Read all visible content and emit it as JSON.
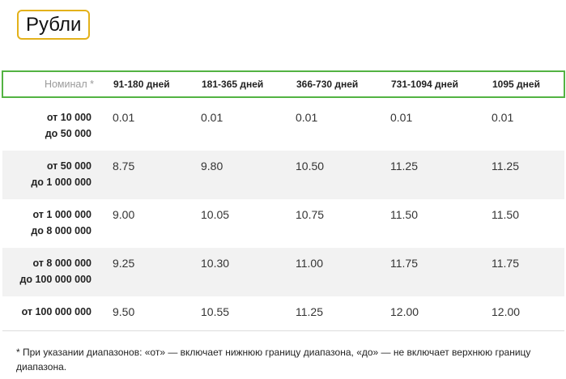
{
  "currency_tab": {
    "label": "Рубли",
    "border_color": "#e3b11a"
  },
  "table": {
    "header_border_color": "#53b342",
    "nominal_header": "Номинал *",
    "columns": [
      "91-180 дней",
      "181-365 дней",
      "366-730 дней",
      "731-1094 дней",
      "1095 дней"
    ],
    "rows": [
      {
        "line1": "от 10 000",
        "line2": "до 50 000",
        "rates": [
          "0.01",
          "0.01",
          "0.01",
          "0.01",
          "0.01"
        ]
      },
      {
        "line1": "от 50 000",
        "line2": "до 1 000 000",
        "rates": [
          "8.75",
          "9.80",
          "10.50",
          "11.25",
          "11.25"
        ]
      },
      {
        "line1": "от 1 000 000",
        "line2": "до 8 000 000",
        "rates": [
          "9.00",
          "10.05",
          "10.75",
          "11.50",
          "11.50"
        ]
      },
      {
        "line1": "от 8 000 000",
        "line2": "до 100 000 000",
        "rates": [
          "9.25",
          "10.30",
          "11.00",
          "11.75",
          "11.75"
        ]
      },
      {
        "line1": "от 100 000 000",
        "line2": "",
        "rates": [
          "9.50",
          "10.55",
          "11.25",
          "12.00",
          "12.00"
        ]
      }
    ]
  },
  "footnote": "* При указании диапазонов: «от» — включает нижнюю границу диапазона, «до» — не включает верхнюю границу диапазона."
}
